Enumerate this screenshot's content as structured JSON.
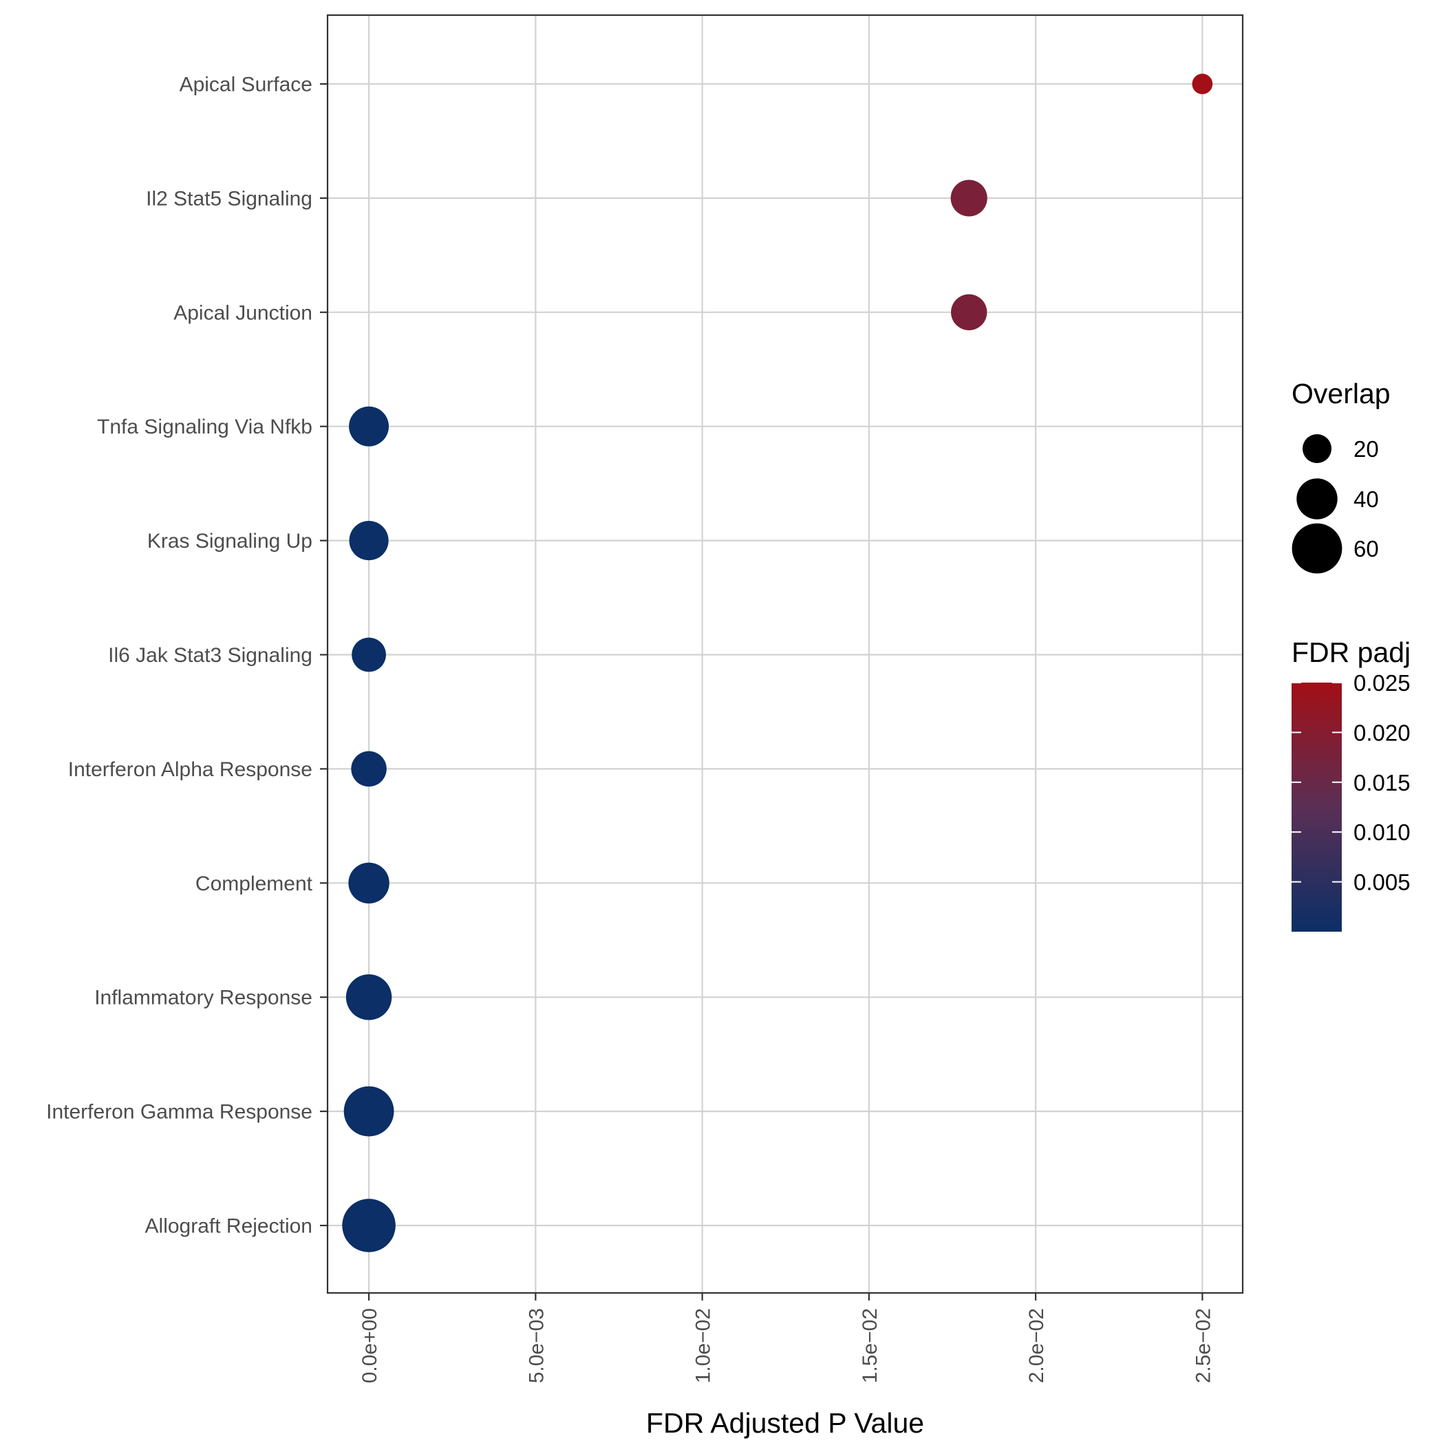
{
  "chart_data": {
    "type": "scatter",
    "xlabel": "FDR Adjusted P Value",
    "ylabel": "",
    "xlim": [
      -0.00124,
      0.02621
    ],
    "x_ticks": [
      0,
      0.005,
      0.01,
      0.015,
      0.02,
      0.025
    ],
    "x_tick_labels": [
      "0.0e+00",
      "5.0e−03",
      "1.0e−02",
      "1.5e−02",
      "2.0e−02",
      "2.5e−02"
    ],
    "grid": true,
    "categories": [
      "Apical Surface",
      "Il2 Stat5 Signaling",
      "Apical Junction",
      "Tnfa Signaling Via Nfkb",
      "Kras Signaling Up",
      "Il6 Jak Stat3 Signaling",
      "Interferon Alpha Response",
      "Complement",
      "Inflammatory Response",
      "Interferon Gamma Response",
      "Allograft Rejection"
    ],
    "points": [
      {
        "term": "Apical Surface",
        "fdr": 0.025,
        "overlap": 10
      },
      {
        "term": "Il2 Stat5 Signaling",
        "fdr": 0.018,
        "overlap": 32
      },
      {
        "term": "Apical Junction",
        "fdr": 0.018,
        "overlap": 31
      },
      {
        "term": "Tnfa Signaling Via Nfkb",
        "fdr": 0.0,
        "overlap": 38
      },
      {
        "term": "Kras Signaling Up",
        "fdr": 0.0,
        "overlap": 37
      },
      {
        "term": "Il6 Jak Stat3 Signaling",
        "fdr": 0.0,
        "overlap": 28
      },
      {
        "term": "Interferon Alpha Response",
        "fdr": 0.0,
        "overlap": 30
      },
      {
        "term": "Complement",
        "fdr": 0.0,
        "overlap": 40
      },
      {
        "term": "Inflammatory Response",
        "fdr": 0.0,
        "overlap": 50
      },
      {
        "term": "Interferon Gamma Response",
        "fdr": 0.0,
        "overlap": 60
      },
      {
        "term": "Allograft Rejection",
        "fdr": 0.0,
        "overlap": 68
      }
    ],
    "size_legend": {
      "title": "Overlap",
      "breaks": [
        20,
        40,
        60
      ],
      "labels": [
        "20",
        "40",
        "60"
      ]
    },
    "color_legend": {
      "title": "FDR padj",
      "low_color": "#0b2f66",
      "high_color": "#a20f16",
      "limits": [
        0.0,
        0.025
      ],
      "breaks": [
        0.005,
        0.01,
        0.015,
        0.02,
        0.025
      ],
      "labels": [
        "0.005",
        "0.010",
        "0.015",
        "0.020",
        "0.025"
      ]
    },
    "legend_position": "right"
  }
}
